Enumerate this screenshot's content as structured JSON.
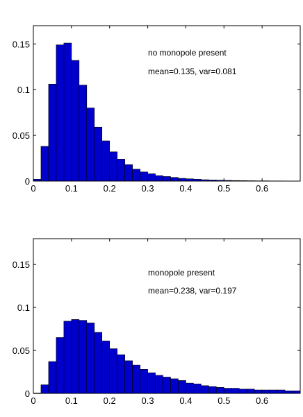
{
  "chart_data": [
    {
      "type": "bar",
      "bin_width": 0.02,
      "x": [
        0.01,
        0.03,
        0.05,
        0.07,
        0.09,
        0.11,
        0.13,
        0.15,
        0.17,
        0.19,
        0.21,
        0.23,
        0.25,
        0.27,
        0.29,
        0.31,
        0.33,
        0.35,
        0.37,
        0.39,
        0.41,
        0.43,
        0.45,
        0.47,
        0.49,
        0.51,
        0.53,
        0.55,
        0.57,
        0.59,
        0.61,
        0.63,
        0.65,
        0.67,
        0.69
      ],
      "values": [
        0.002,
        0.038,
        0.106,
        0.149,
        0.151,
        0.132,
        0.105,
        0.08,
        0.059,
        0.044,
        0.032,
        0.024,
        0.018,
        0.013,
        0.01,
        0.008,
        0.006,
        0.005,
        0.004,
        0.003,
        0.0025,
        0.002,
        0.0015,
        0.0012,
        0.001,
        0.0008,
        0.0006,
        0.0005,
        0.0004,
        0.0003,
        0.0003,
        0.0002,
        0.0002,
        0.0001,
        0.0001
      ],
      "xlim": [
        0,
        0.7
      ],
      "ylim": [
        0,
        0.17
      ],
      "xticks": [
        0,
        0.1,
        0.2,
        0.3,
        0.4,
        0.5,
        0.6
      ],
      "xtick_labels": [
        "0",
        "0.1",
        "0.2",
        "0.3",
        "0.4",
        "0.5",
        "0.6"
      ],
      "yticks": [
        0,
        0.05,
        0.1,
        0.15
      ],
      "ytick_labels": [
        "0",
        "0.05",
        "0.1",
        "0.15"
      ],
      "annotations": [
        "no monopole present",
        "mean=0.135, var=0.081"
      ],
      "bar_color": "#0000cc",
      "grid": false
    },
    {
      "type": "bar",
      "bin_width": 0.02,
      "x": [
        0.01,
        0.03,
        0.05,
        0.07,
        0.09,
        0.11,
        0.13,
        0.15,
        0.17,
        0.19,
        0.21,
        0.23,
        0.25,
        0.27,
        0.29,
        0.31,
        0.33,
        0.35,
        0.37,
        0.39,
        0.41,
        0.43,
        0.45,
        0.47,
        0.49,
        0.51,
        0.53,
        0.55,
        0.57,
        0.59,
        0.61,
        0.63,
        0.65,
        0.67,
        0.69
      ],
      "values": [
        0.0005,
        0.01,
        0.037,
        0.065,
        0.084,
        0.086,
        0.085,
        0.082,
        0.071,
        0.061,
        0.052,
        0.045,
        0.038,
        0.033,
        0.028,
        0.024,
        0.021,
        0.019,
        0.017,
        0.015,
        0.012,
        0.011,
        0.009,
        0.008,
        0.007,
        0.006,
        0.006,
        0.005,
        0.005,
        0.004,
        0.004,
        0.004,
        0.004,
        0.003,
        0.003
      ],
      "xlim": [
        0,
        0.7
      ],
      "ylim": [
        0,
        0.18
      ],
      "xticks": [
        0,
        0.1,
        0.2,
        0.3,
        0.4,
        0.5,
        0.6
      ],
      "xtick_labels": [
        "0",
        "0.1",
        "0.2",
        "0.3",
        "0.4",
        "0.5",
        "0.6"
      ],
      "yticks": [
        0,
        0.05,
        0.1,
        0.15
      ],
      "ytick_labels": [
        "0",
        "0.05",
        "0.1",
        "0.15"
      ],
      "annotations": [
        "monopole present",
        "mean=0.238, var=0.197"
      ],
      "bar_color": "#0000cc",
      "grid": false
    }
  ]
}
